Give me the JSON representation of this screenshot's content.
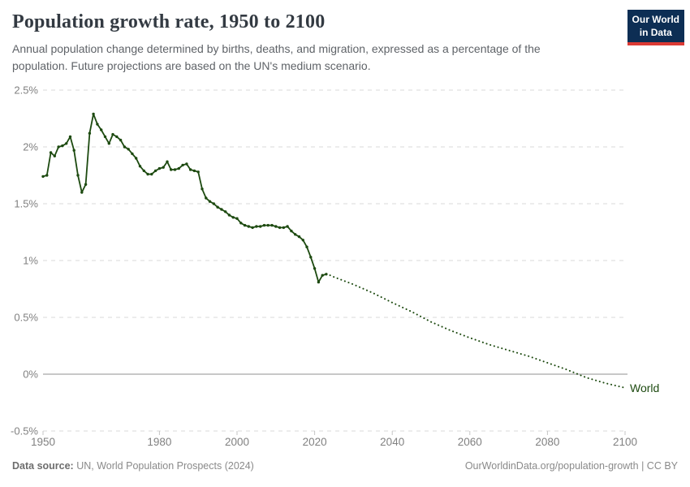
{
  "header": {
    "title": "Population growth rate, 1950 to 2100",
    "subtitle": "Annual population change determined by births, deaths, and migration, expressed as a percentage of the population. Future projections are based on the UN's medium scenario."
  },
  "logo": {
    "line1": "Our World",
    "line2": "in Data",
    "bg_color": "#0d2e54",
    "bar_color": "#dc3a34"
  },
  "footer": {
    "datasource_label": "Data source:",
    "datasource_value": "UN, World Population Prospects (2024)",
    "credit": "OurWorldinData.org/population-growth | CC BY"
  },
  "chart_data": {
    "type": "line",
    "title": "Population growth rate, 1950 to 2100",
    "xlabel": "",
    "ylabel": "",
    "unit": "%",
    "xlim": [
      1950,
      2100
    ],
    "ylim": [
      -0.5,
      2.5
    ],
    "grid": true,
    "legend_position": "end-of-line label",
    "end_label": "World",
    "x_ticks": [
      1950,
      1980,
      2000,
      2020,
      2040,
      2060,
      2080,
      2100
    ],
    "y_ticks": [
      {
        "label": "2.5%",
        "value": 2.5
      },
      {
        "label": "2%",
        "value": 2.0
      },
      {
        "label": "1.5%",
        "value": 1.5
      },
      {
        "label": "1%",
        "value": 1.0
      },
      {
        "label": "0.5%",
        "value": 0.5
      },
      {
        "label": "0%",
        "value": 0.0
      },
      {
        "label": "-0.5%",
        "value": -0.5
      }
    ],
    "colors": {
      "grid": "#dadada",
      "zero_line": "#c8c8c8",
      "tick_text": "#818181"
    },
    "series": [
      {
        "name": "World",
        "color": "#1d4a10",
        "historic_style": "solid line with point markers",
        "projection_style": "dotted line (UN medium scenario)",
        "historic": {
          "years": [
            1950,
            1951,
            1952,
            1953,
            1954,
            1955,
            1956,
            1957,
            1958,
            1959,
            1960,
            1961,
            1962,
            1963,
            1964,
            1965,
            1966,
            1967,
            1968,
            1969,
            1970,
            1971,
            1972,
            1973,
            1974,
            1975,
            1976,
            1977,
            1978,
            1979,
            1980,
            1981,
            1982,
            1983,
            1984,
            1985,
            1986,
            1987,
            1988,
            1989,
            1990,
            1991,
            1992,
            1993,
            1994,
            1995,
            1996,
            1997,
            1998,
            1999,
            2000,
            2001,
            2002,
            2003,
            2004,
            2005,
            2006,
            2007,
            2008,
            2009,
            2010,
            2011,
            2012,
            2013,
            2014,
            2015,
            2016,
            2017,
            2018,
            2019,
            2020,
            2021,
            2022,
            2023
          ],
          "values": [
            1.74,
            1.75,
            1.95,
            1.92,
            2.0,
            2.01,
            2.03,
            2.09,
            1.97,
            1.75,
            1.6,
            1.67,
            2.12,
            2.29,
            2.2,
            2.15,
            2.09,
            2.03,
            2.11,
            2.09,
            2.06,
            2.0,
            1.98,
            1.94,
            1.9,
            1.83,
            1.79,
            1.76,
            1.76,
            1.79,
            1.81,
            1.82,
            1.87,
            1.8,
            1.8,
            1.81,
            1.84,
            1.85,
            1.8,
            1.79,
            1.78,
            1.63,
            1.55,
            1.52,
            1.5,
            1.47,
            1.45,
            1.43,
            1.4,
            1.38,
            1.37,
            1.33,
            1.31,
            1.3,
            1.29,
            1.3,
            1.3,
            1.31,
            1.31,
            1.31,
            1.3,
            1.29,
            1.29,
            1.3,
            1.26,
            1.23,
            1.21,
            1.18,
            1.12,
            1.03,
            0.93,
            0.81,
            0.87,
            0.88
          ]
        },
        "projection": {
          "years": [
            2024,
            2025,
            2030,
            2035,
            2040,
            2045,
            2050,
            2055,
            2060,
            2065,
            2070,
            2075,
            2080,
            2085,
            2090,
            2095,
            2100
          ],
          "values": [
            0.87,
            0.855,
            0.79,
            0.715,
            0.63,
            0.55,
            0.46,
            0.385,
            0.32,
            0.26,
            0.21,
            0.16,
            0.1,
            0.04,
            -0.03,
            -0.08,
            -0.12
          ]
        }
      }
    ]
  }
}
